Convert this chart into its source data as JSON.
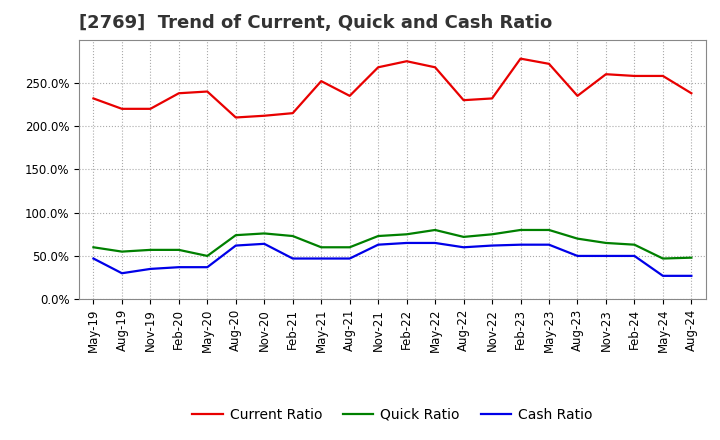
{
  "title": "[2769]  Trend of Current, Quick and Cash Ratio",
  "x_labels": [
    "May-19",
    "Aug-19",
    "Nov-19",
    "Feb-20",
    "May-20",
    "Aug-20",
    "Nov-20",
    "Feb-21",
    "May-21",
    "Aug-21",
    "Nov-21",
    "Feb-22",
    "May-22",
    "Aug-22",
    "Nov-22",
    "Feb-23",
    "May-23",
    "Aug-23",
    "Nov-23",
    "Feb-24",
    "May-24",
    "Aug-24"
  ],
  "current_ratio": [
    232,
    220,
    220,
    238,
    240,
    210,
    212,
    215,
    252,
    235,
    268,
    275,
    268,
    230,
    232,
    278,
    272,
    235,
    260,
    258,
    258,
    238
  ],
  "quick_ratio": [
    60,
    55,
    57,
    57,
    50,
    74,
    76,
    73,
    60,
    60,
    73,
    75,
    80,
    72,
    75,
    80,
    80,
    70,
    65,
    63,
    47,
    48
  ],
  "cash_ratio": [
    47,
    30,
    35,
    37,
    37,
    62,
    64,
    47,
    47,
    47,
    63,
    65,
    65,
    60,
    62,
    63,
    63,
    50,
    50,
    50,
    27,
    27
  ],
  "current_color": "#e80000",
  "quick_color": "#008000",
  "cash_color": "#0000e8",
  "background_color": "#ffffff",
  "plot_bg_color": "#ffffff",
  "grid_color": "#aaaaaa",
  "ylim": [
    0,
    300
  ],
  "yticks": [
    0,
    50,
    100,
    150,
    200,
    250
  ],
  "ytick_labels": [
    "0.0%",
    "50.0%",
    "100.0%",
    "150.0%",
    "200.0%",
    "250.0%"
  ],
  "legend_labels": [
    "Current Ratio",
    "Quick Ratio",
    "Cash Ratio"
  ],
  "title_fontsize": 13,
  "tick_fontsize": 8.5,
  "legend_fontsize": 10,
  "line_width": 1.6
}
